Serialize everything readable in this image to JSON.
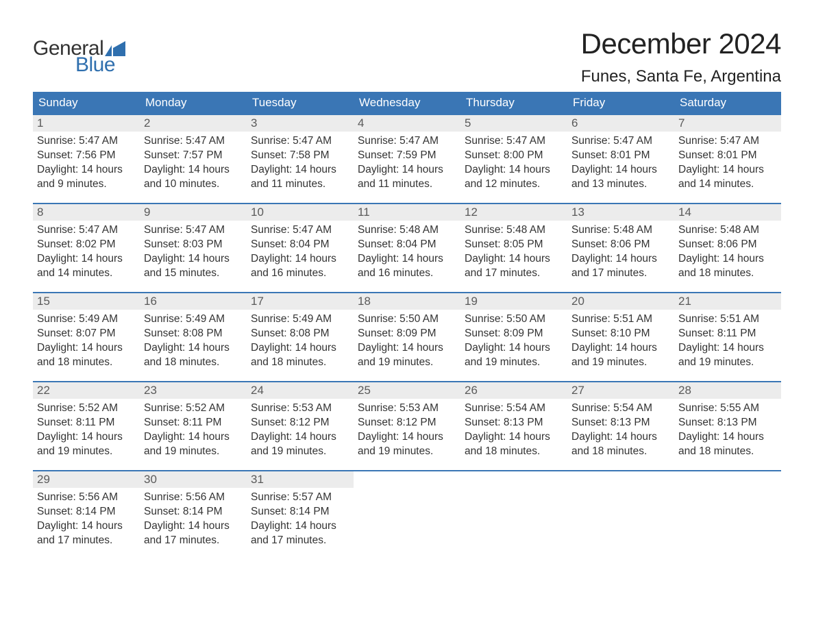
{
  "logo": {
    "word1": "General",
    "word2": "Blue",
    "color1": "#333333",
    "color2": "#2f6fae"
  },
  "title": "December 2024",
  "subtitle": "Funes, Santa Fe, Argentina",
  "colors": {
    "header_bg": "#3a76b5",
    "header_text": "#ffffff",
    "daynum_bg": "#ececec",
    "daynum_text": "#5a5a5a",
    "body_text": "#333333",
    "row_border": "#3a76b5",
    "page_bg": "#ffffff"
  },
  "fonts": {
    "title_size": 42,
    "subtitle_size": 24,
    "th_size": 17,
    "daynum_size": 17,
    "cell_size": 15.5
  },
  "day_headers": [
    "Sunday",
    "Monday",
    "Tuesday",
    "Wednesday",
    "Thursday",
    "Friday",
    "Saturday"
  ],
  "weeks": [
    [
      {
        "n": "1",
        "sr": "Sunrise: 5:47 AM",
        "ss": "Sunset: 7:56 PM",
        "d1": "Daylight: 14 hours",
        "d2": "and 9 minutes."
      },
      {
        "n": "2",
        "sr": "Sunrise: 5:47 AM",
        "ss": "Sunset: 7:57 PM",
        "d1": "Daylight: 14 hours",
        "d2": "and 10 minutes."
      },
      {
        "n": "3",
        "sr": "Sunrise: 5:47 AM",
        "ss": "Sunset: 7:58 PM",
        "d1": "Daylight: 14 hours",
        "d2": "and 11 minutes."
      },
      {
        "n": "4",
        "sr": "Sunrise: 5:47 AM",
        "ss": "Sunset: 7:59 PM",
        "d1": "Daylight: 14 hours",
        "d2": "and 11 minutes."
      },
      {
        "n": "5",
        "sr": "Sunrise: 5:47 AM",
        "ss": "Sunset: 8:00 PM",
        "d1": "Daylight: 14 hours",
        "d2": "and 12 minutes."
      },
      {
        "n": "6",
        "sr": "Sunrise: 5:47 AM",
        "ss": "Sunset: 8:01 PM",
        "d1": "Daylight: 14 hours",
        "d2": "and 13 minutes."
      },
      {
        "n": "7",
        "sr": "Sunrise: 5:47 AM",
        "ss": "Sunset: 8:01 PM",
        "d1": "Daylight: 14 hours",
        "d2": "and 14 minutes."
      }
    ],
    [
      {
        "n": "8",
        "sr": "Sunrise: 5:47 AM",
        "ss": "Sunset: 8:02 PM",
        "d1": "Daylight: 14 hours",
        "d2": "and 14 minutes."
      },
      {
        "n": "9",
        "sr": "Sunrise: 5:47 AM",
        "ss": "Sunset: 8:03 PM",
        "d1": "Daylight: 14 hours",
        "d2": "and 15 minutes."
      },
      {
        "n": "10",
        "sr": "Sunrise: 5:47 AM",
        "ss": "Sunset: 8:04 PM",
        "d1": "Daylight: 14 hours",
        "d2": "and 16 minutes."
      },
      {
        "n": "11",
        "sr": "Sunrise: 5:48 AM",
        "ss": "Sunset: 8:04 PM",
        "d1": "Daylight: 14 hours",
        "d2": "and 16 minutes."
      },
      {
        "n": "12",
        "sr": "Sunrise: 5:48 AM",
        "ss": "Sunset: 8:05 PM",
        "d1": "Daylight: 14 hours",
        "d2": "and 17 minutes."
      },
      {
        "n": "13",
        "sr": "Sunrise: 5:48 AM",
        "ss": "Sunset: 8:06 PM",
        "d1": "Daylight: 14 hours",
        "d2": "and 17 minutes."
      },
      {
        "n": "14",
        "sr": "Sunrise: 5:48 AM",
        "ss": "Sunset: 8:06 PM",
        "d1": "Daylight: 14 hours",
        "d2": "and 18 minutes."
      }
    ],
    [
      {
        "n": "15",
        "sr": "Sunrise: 5:49 AM",
        "ss": "Sunset: 8:07 PM",
        "d1": "Daylight: 14 hours",
        "d2": "and 18 minutes."
      },
      {
        "n": "16",
        "sr": "Sunrise: 5:49 AM",
        "ss": "Sunset: 8:08 PM",
        "d1": "Daylight: 14 hours",
        "d2": "and 18 minutes."
      },
      {
        "n": "17",
        "sr": "Sunrise: 5:49 AM",
        "ss": "Sunset: 8:08 PM",
        "d1": "Daylight: 14 hours",
        "d2": "and 18 minutes."
      },
      {
        "n": "18",
        "sr": "Sunrise: 5:50 AM",
        "ss": "Sunset: 8:09 PM",
        "d1": "Daylight: 14 hours",
        "d2": "and 19 minutes."
      },
      {
        "n": "19",
        "sr": "Sunrise: 5:50 AM",
        "ss": "Sunset: 8:09 PM",
        "d1": "Daylight: 14 hours",
        "d2": "and 19 minutes."
      },
      {
        "n": "20",
        "sr": "Sunrise: 5:51 AM",
        "ss": "Sunset: 8:10 PM",
        "d1": "Daylight: 14 hours",
        "d2": "and 19 minutes."
      },
      {
        "n": "21",
        "sr": "Sunrise: 5:51 AM",
        "ss": "Sunset: 8:11 PM",
        "d1": "Daylight: 14 hours",
        "d2": "and 19 minutes."
      }
    ],
    [
      {
        "n": "22",
        "sr": "Sunrise: 5:52 AM",
        "ss": "Sunset: 8:11 PM",
        "d1": "Daylight: 14 hours",
        "d2": "and 19 minutes."
      },
      {
        "n": "23",
        "sr": "Sunrise: 5:52 AM",
        "ss": "Sunset: 8:11 PM",
        "d1": "Daylight: 14 hours",
        "d2": "and 19 minutes."
      },
      {
        "n": "24",
        "sr": "Sunrise: 5:53 AM",
        "ss": "Sunset: 8:12 PM",
        "d1": "Daylight: 14 hours",
        "d2": "and 19 minutes."
      },
      {
        "n": "25",
        "sr": "Sunrise: 5:53 AM",
        "ss": "Sunset: 8:12 PM",
        "d1": "Daylight: 14 hours",
        "d2": "and 19 minutes."
      },
      {
        "n": "26",
        "sr": "Sunrise: 5:54 AM",
        "ss": "Sunset: 8:13 PM",
        "d1": "Daylight: 14 hours",
        "d2": "and 18 minutes."
      },
      {
        "n": "27",
        "sr": "Sunrise: 5:54 AM",
        "ss": "Sunset: 8:13 PM",
        "d1": "Daylight: 14 hours",
        "d2": "and 18 minutes."
      },
      {
        "n": "28",
        "sr": "Sunrise: 5:55 AM",
        "ss": "Sunset: 8:13 PM",
        "d1": "Daylight: 14 hours",
        "d2": "and 18 minutes."
      }
    ],
    [
      {
        "n": "29",
        "sr": "Sunrise: 5:56 AM",
        "ss": "Sunset: 8:14 PM",
        "d1": "Daylight: 14 hours",
        "d2": "and 17 minutes."
      },
      {
        "n": "30",
        "sr": "Sunrise: 5:56 AM",
        "ss": "Sunset: 8:14 PM",
        "d1": "Daylight: 14 hours",
        "d2": "and 17 minutes."
      },
      {
        "n": "31",
        "sr": "Sunrise: 5:57 AM",
        "ss": "Sunset: 8:14 PM",
        "d1": "Daylight: 14 hours",
        "d2": "and 17 minutes."
      },
      null,
      null,
      null,
      null
    ]
  ]
}
